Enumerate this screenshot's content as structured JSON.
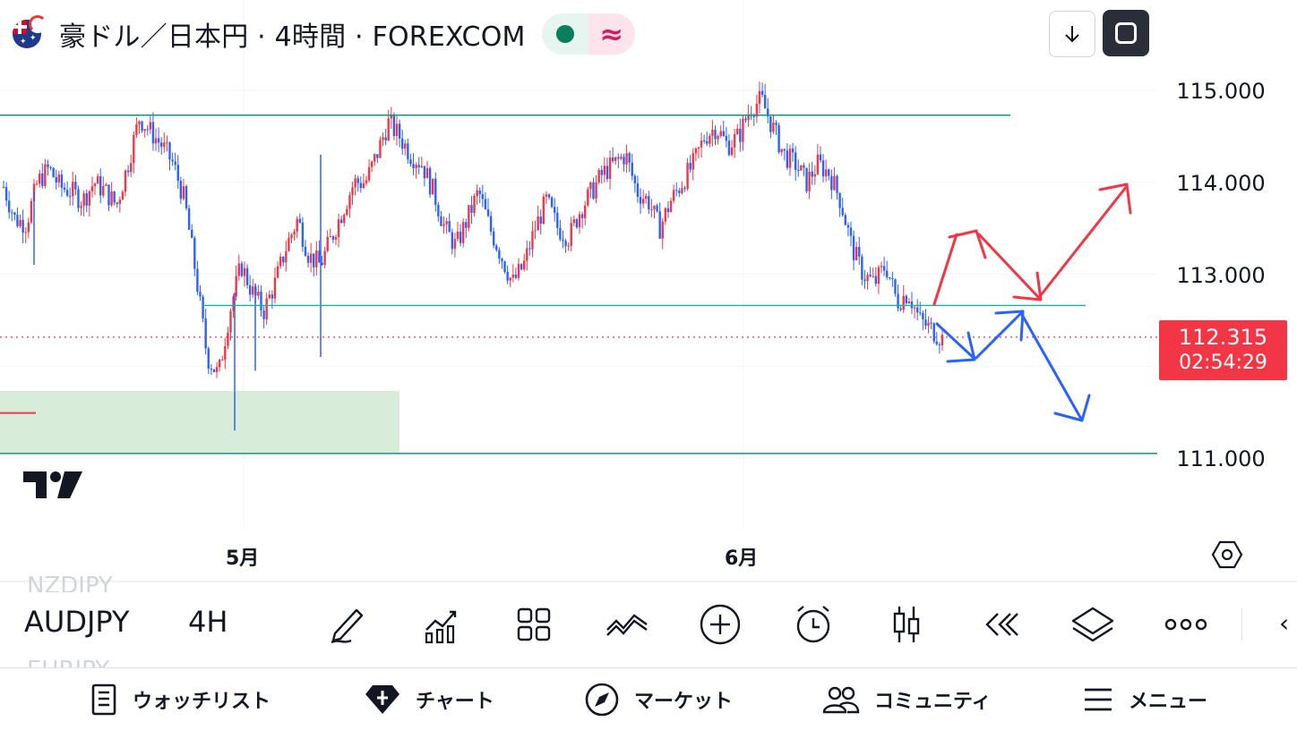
{
  "header": {
    "title": "豪ドル／日本円 · 4時間 · FOREXCOM",
    "status_symbol": "≈"
  },
  "chart_data": {
    "type": "candlestick",
    "symbol": "AUDJPY",
    "timeframe": "4H",
    "price_axis_ticks": [
      "115.000",
      "114.000",
      "113.000",
      "111.000"
    ],
    "time_axis_ticks": [
      "5月",
      "6月"
    ],
    "current_price": "112.315",
    "countdown": "02:54:29",
    "candle_close_path": [
      113.95,
      113.6,
      113.55,
      114.0,
      114.15,
      113.95,
      113.9,
      113.8,
      114.0,
      113.9,
      113.75,
      114.2,
      114.7,
      114.55,
      114.4,
      114.2,
      113.8,
      113.0,
      112.1,
      111.9,
      112.6,
      113.1,
      112.8,
      112.6,
      112.9,
      113.3,
      113.6,
      113.2,
      113.1,
      113.4,
      113.7,
      114.0,
      114.0,
      114.3,
      114.65,
      114.5,
      114.3,
      114.2,
      113.9,
      113.5,
      113.3,
      113.6,
      113.9,
      113.5,
      113.2,
      112.9,
      113.1,
      113.5,
      113.8,
      113.5,
      113.4,
      113.7,
      113.9,
      114.1,
      114.2,
      114.3,
      113.9,
      113.8,
      113.5,
      113.8,
      114.0,
      114.2,
      114.5,
      114.6,
      114.4,
      114.5,
      114.8,
      114.9,
      114.6,
      114.3,
      114.2,
      114.0,
      114.2,
      114.1,
      113.8,
      113.3,
      113.0,
      112.9,
      113.1,
      112.7,
      112.8,
      112.5,
      112.4,
      112.3
    ]
  },
  "levels": {
    "upper_resistance": 114.73,
    "mid_support": 112.66,
    "lower_support": 111.05,
    "zone_top": 111.73,
    "zone_bottom": 111.05
  },
  "colors": {
    "up": "#f23645",
    "down": "#2962ff",
    "level": "#089981",
    "mid_level": "#22ab94",
    "zone": "#d8edd9",
    "red_arrow": "#f23645",
    "blue_arrow": "#2962ff"
  },
  "toolbar": {
    "symbol": "AUDJPY",
    "timeframe": "4H",
    "ghost_above": "NZDJPY",
    "ghost_below": "EURJPY",
    "tools": [
      "drawing-icon",
      "indicators-icon",
      "layouts-icon",
      "compare-icon",
      "add-icon",
      "alert-icon",
      "chart-type-icon",
      "replay-icon",
      "layers-icon",
      "more-icon"
    ]
  },
  "bottom_nav": {
    "watchlist": "ウォッチリスト",
    "chart": "チャート",
    "market": "マーケット",
    "community": "コミュニティ",
    "menu": "メニュー"
  }
}
